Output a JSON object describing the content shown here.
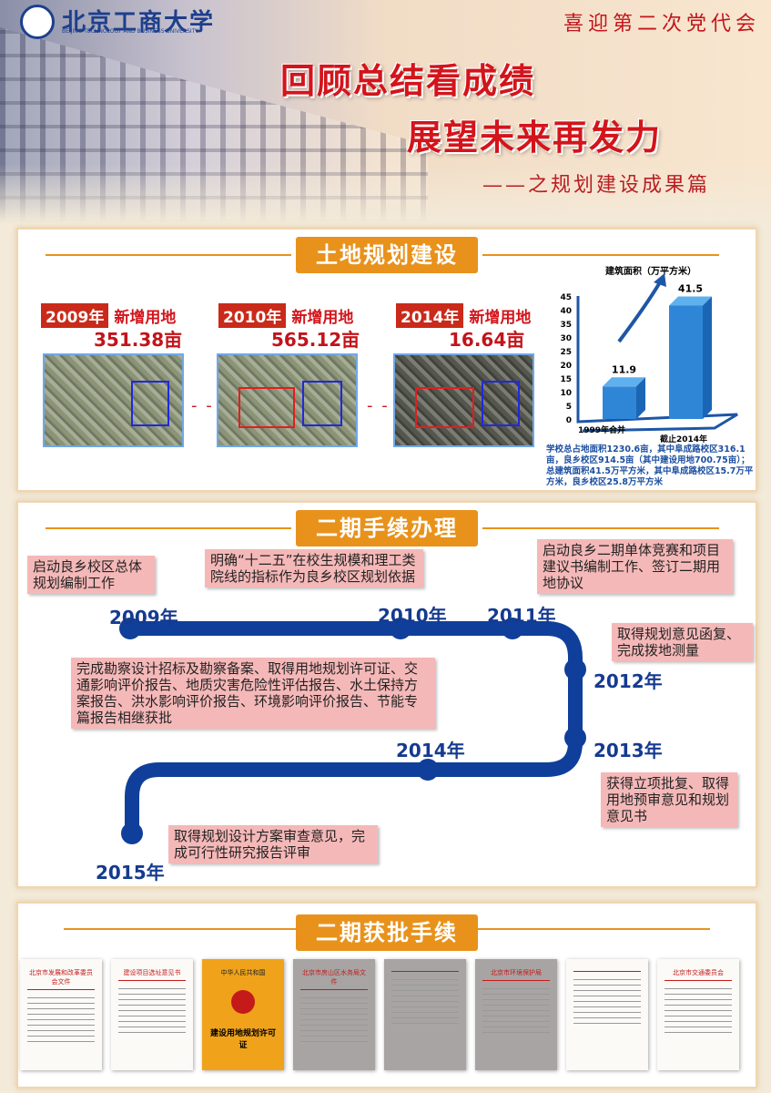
{
  "header": {
    "logo_cn": "北京工商大学",
    "logo_en": "BEIJING TECHNOLOGY AND BUSINESS UNIVERSITY",
    "banner": "喜迎第二次党代会",
    "title1": "回顾总结看成绩",
    "title2": "展望未来再发力",
    "subtitle": "——之规划建设成果篇"
  },
  "land": {
    "tab": "土地规划建设",
    "items": [
      {
        "year": "2009年",
        "label": "新增用地",
        "value": "351.38亩"
      },
      {
        "year": "2010年",
        "label": "新增用地",
        "value": "565.12亩"
      },
      {
        "year": "2014年",
        "label": "新增用地",
        "value": "16.64亩"
      }
    ],
    "note": "学校总占地面积1230.6亩，其中阜成路校区316.1亩，良乡校区914.5亩（其中建设用地700.75亩）；总建筑面积41.5万平方米，其中阜成路校区15.7万平方米，良乡校区25.8万平方米"
  },
  "chart_data": {
    "type": "bar",
    "title": "建筑面积（万平方米）",
    "categories": [
      "1999年合并",
      "截止2014年"
    ],
    "values": [
      11.9,
      41.5
    ],
    "data_labels": [
      "11.9",
      "41.5"
    ],
    "ylim": [
      0,
      45
    ],
    "yticks": [
      "0",
      "5",
      "10",
      "15",
      "20",
      "25",
      "30",
      "35",
      "40",
      "45"
    ],
    "color": "#2f86d6"
  },
  "process": {
    "tab": "二期手续办理",
    "years": [
      "2009年",
      "2010年",
      "2011年",
      "2012年",
      "2013年",
      "2014年",
      "2015年"
    ],
    "events": [
      "启动良乡校区总体规划编制工作",
      "明确“十二五”在校生规模和理工类院线的指标作为良乡校区规划依据",
      "启动良乡二期单体竞赛和项目建议书编制工作、签订二期用地协议",
      "取得规划意见函复、完成拨地测量",
      "获得立项批复、取得用地预审意见和规划意见书",
      "完成勘察设计招标及勘察备案、取得用地规划许可证、交通影响评价报告、地质灾害危险性评估报告、水土保持方案报告、洪水影响评价报告、环境影响评价报告、节能专篇报告相继获批",
      "取得规划设计方案审查意见，完成可行性研究报告评审"
    ],
    "line_color": "#0f3f9a"
  },
  "approval": {
    "tab": "二期获批手续",
    "docs": [
      "北京市发展和改革委员会文件",
      "建设项目选址意见书",
      "建设用地规划许可证",
      "北京市房山区水务局文件",
      "",
      "北京市环境保护局",
      "",
      "北京市交通委员会"
    ],
    "permit_top": "中华人民共和国"
  }
}
